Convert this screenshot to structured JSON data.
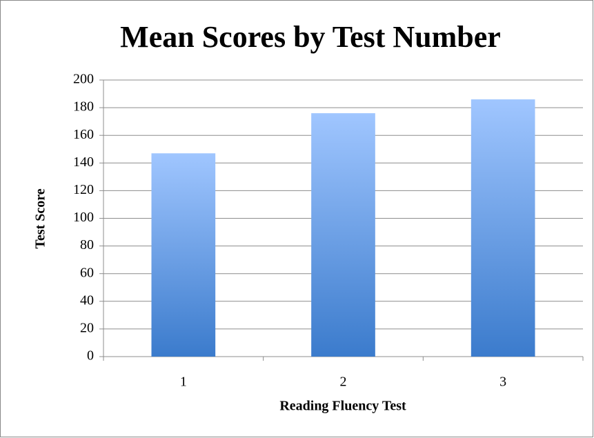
{
  "chart_data": {
    "type": "bar",
    "title": "Mean Scores by Test Number",
    "x_label": "Reading Fluency Test",
    "y_label": "Test Score",
    "categories": [
      "1",
      "2",
      "3"
    ],
    "values": [
      147,
      176,
      186
    ],
    "gradient": [
      "#a0c6ff",
      "#3b7bcc"
    ],
    "ylim": [
      0,
      200
    ],
    "yticks": [
      0,
      20,
      40,
      60,
      80,
      100,
      120,
      140,
      160,
      180,
      200
    ],
    "grid": true
  }
}
